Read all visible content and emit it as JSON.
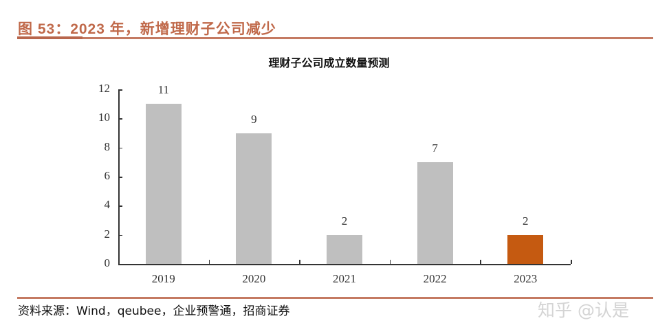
{
  "figure": {
    "title": "图 53：2023 年，新增理财子公司减少",
    "source": "资料来源：Wind，qeubee，企业预警通，招商证券",
    "watermark": "知乎 @认是"
  },
  "colors": {
    "accent": "#c47a62",
    "bar_default": "#bfbfbf",
    "bar_highlight": "#c55a11"
  },
  "chart_data": {
    "type": "bar",
    "title": "理财子公司成立数量预测",
    "categories": [
      "2019",
      "2020",
      "2021",
      "2022",
      "2023"
    ],
    "values": [
      11,
      9,
      2,
      7,
      2
    ],
    "data_labels": [
      "11",
      "9",
      "2",
      "7",
      "2"
    ],
    "highlight_index": 4,
    "xlabel": "",
    "ylabel": "",
    "ylim": [
      0,
      12
    ],
    "yticks": [
      "0",
      "2",
      "4",
      "6",
      "8",
      "10",
      "12"
    ],
    "grid": false,
    "legend": null
  }
}
